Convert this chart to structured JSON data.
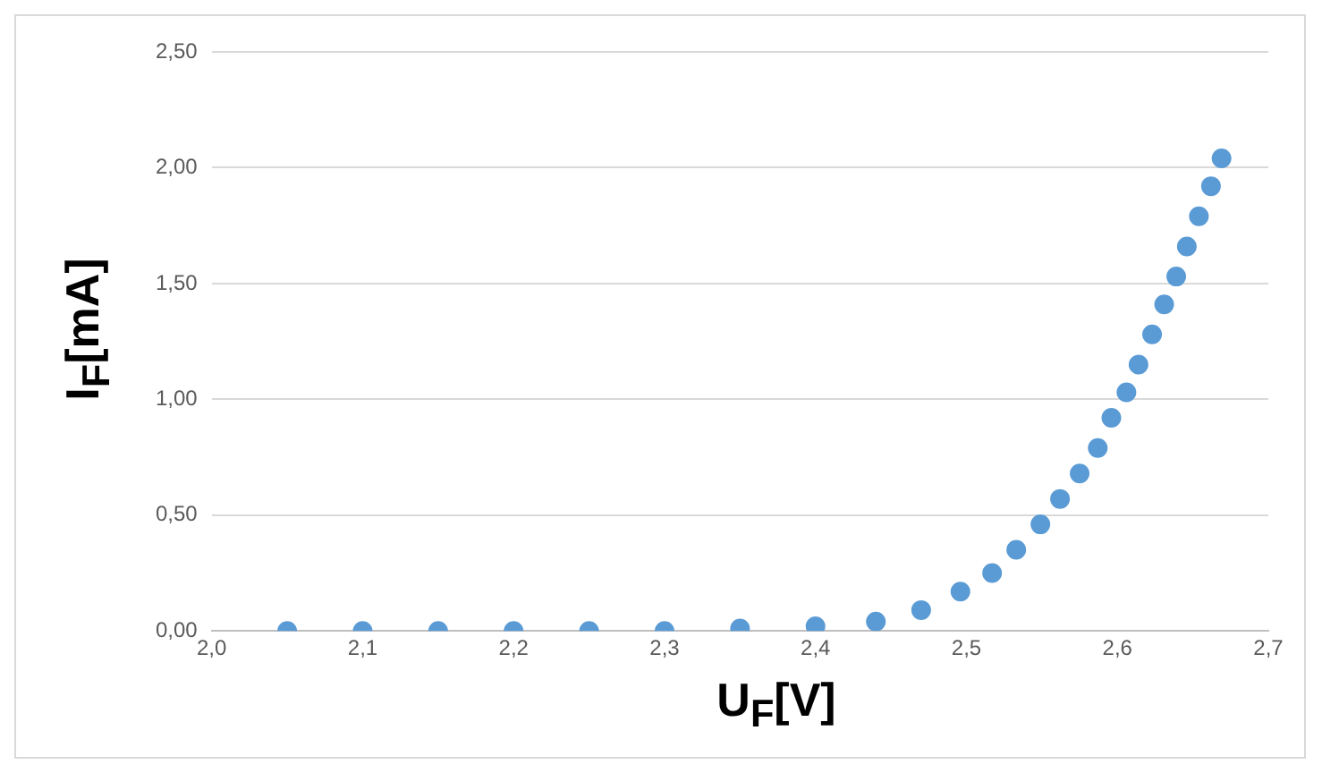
{
  "chart_data": {
    "type": "scatter",
    "xlabel": "U$_{F}$[V]",
    "ylabel": "I$_{F}$[mA]",
    "x": [
      2.05,
      2.1,
      2.15,
      2.2,
      2.25,
      2.3,
      2.35,
      2.4,
      2.44,
      2.47,
      2.496,
      2.517,
      2.533,
      2.549,
      2.562,
      2.575,
      2.587,
      2.596,
      2.606,
      2.614,
      2.623,
      2.631,
      2.639,
      2.646,
      2.654,
      2.662,
      2.669
    ],
    "series": [
      {
        "color": "#5b9bd5",
        "values": [
          0,
          0,
          0,
          0,
          0,
          0,
          0.01,
          0.02,
          0.04,
          0.09,
          0.17,
          0.25,
          0.35,
          0.46,
          0.57,
          0.68,
          0.79,
          0.92,
          1.03,
          1.15,
          1.28,
          1.41,
          1.53,
          1.66,
          1.79,
          1.92,
          2.04
        ]
      }
    ],
    "xlim": [
      2.0,
      2.7
    ],
    "xticks": [
      {
        "value": 2.0,
        "label": "2,0"
      },
      {
        "value": 2.1,
        "label": "2,1"
      },
      {
        "value": 2.2,
        "label": "2,2"
      },
      {
        "value": 2.3,
        "label": "2,3"
      },
      {
        "value": 2.4,
        "label": "2,4"
      },
      {
        "value": 2.5,
        "label": "2,5"
      },
      {
        "value": 2.6,
        "label": "2,6"
      },
      {
        "value": 2.7,
        "label": "2,7"
      }
    ],
    "ylim": [
      0,
      2.5
    ],
    "yticks": [
      {
        "value": 0,
        "label": "0,00"
      },
      {
        "value": 0.5,
        "label": "0,50"
      },
      {
        "value": 1,
        "label": "1,00"
      },
      {
        "value": 1.5,
        "label": "1,50"
      },
      {
        "value": 2,
        "label": "2,00"
      },
      {
        "value": 2.5,
        "label": "2,50"
      }
    ],
    "grid": "y",
    "legend": false,
    "marker": "circle"
  }
}
